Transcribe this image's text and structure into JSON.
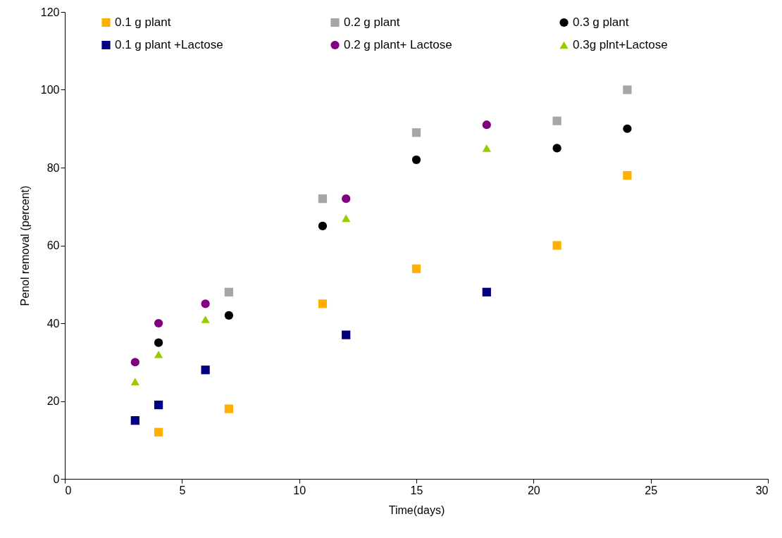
{
  "chart_data": {
    "type": "scatter",
    "xlabel": "Time(days)",
    "ylabel": "Penol removal (percent)",
    "xlim": [
      0,
      30
    ],
    "xticks": [
      0,
      5,
      10,
      15,
      20,
      25,
      30
    ],
    "ylim": [
      0,
      120
    ],
    "yticks": [
      0,
      20,
      40,
      60,
      80,
      100,
      120
    ],
    "grid": false,
    "legend": "top",
    "series": [
      {
        "name": "0.1 g plant",
        "color": "#ffb000",
        "marker": "square",
        "x": [
          4,
          7,
          11,
          15,
          21,
          24
        ],
        "values": [
          12,
          18,
          45,
          54,
          60,
          78
        ]
      },
      {
        "name": "0.2 g plant",
        "color": "#a6a6a6",
        "marker": "square",
        "x": [
          7,
          11,
          15,
          21,
          24
        ],
        "values": [
          48,
          72,
          89,
          92,
          100
        ]
      },
      {
        "name": "0.3 g plant",
        "color": "#000000",
        "marker": "circle",
        "x": [
          4,
          7,
          11,
          15,
          21,
          24
        ],
        "values": [
          35,
          42,
          65,
          82,
          85,
          90
        ]
      },
      {
        "name": "0.1 g plant +Lactose",
        "color": "#000080",
        "marker": "square",
        "x": [
          3,
          4,
          6,
          12,
          18
        ],
        "values": [
          15,
          19,
          28,
          37,
          48
        ]
      },
      {
        "name": "0.2 g plant+ Lactose",
        "color": "#800080",
        "marker": "circle",
        "x": [
          3,
          4,
          6,
          12,
          18
        ],
        "values": [
          30,
          40,
          45,
          72,
          91
        ]
      },
      {
        "name": "0.3g plnt+Lactose",
        "color": "#99cc00",
        "marker": "triangle",
        "x": [
          3,
          4,
          6,
          12,
          18
        ],
        "values": [
          25,
          32,
          41,
          67,
          85
        ]
      }
    ]
  }
}
